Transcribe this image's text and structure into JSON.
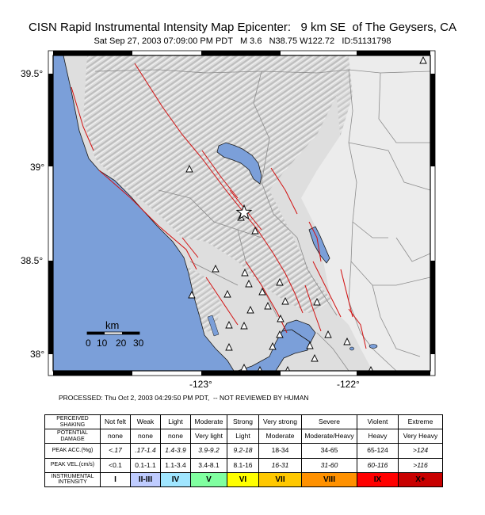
{
  "header": {
    "title": "CISN Rapid Instrumental Intensity Map Epicenter:   9 km SE  of The Geysers, CA",
    "subtitle": "Sat Sep 27, 2003 07:09:00 PM PDT   M 3.6   N38.75 W122.72   ID:51131798"
  },
  "map": {
    "lat_ticks": [
      {
        "label": "39.5°",
        "value": 39.5
      },
      {
        "label": "39°",
        "value": 39.0
      },
      {
        "label": "38.5°",
        "value": 38.5
      },
      {
        "label": "38°",
        "value": 38.0
      }
    ],
    "lon_ticks": [
      {
        "label": "-123°",
        "value": -123.0
      },
      {
        "label": "-122°",
        "value": -122.0
      }
    ],
    "epicenter": {
      "lat": 38.75,
      "lon": -122.72,
      "symbol": "star-icon"
    },
    "scale_bar": {
      "unit": "km",
      "labels": [
        "0",
        "10",
        "20",
        "30"
      ]
    },
    "colors": {
      "water": "#7b9fd9",
      "land": "#dedede",
      "fault": "#d21010",
      "boundary": "#8c8c8c"
    }
  },
  "processed_note": "PROCESSED: Thu Oct 2, 2003 04:29:50 PM PDT,  -- NOT REVIEWED BY HUMAN",
  "legend": {
    "row_labels": {
      "shaking": "PERCEIVED SHAKING",
      "damage": "POTENTIAL DAMAGE",
      "acc": "PEAK ACC.(%g)",
      "vel": "PEAK VEL.(cm/s)",
      "intensity": "INSTRUMENTAL INTENSITY"
    },
    "columns": [
      {
        "shaking": "Not felt",
        "damage": "none",
        "acc": "<.17",
        "vel": "<0.1",
        "intensity": "I",
        "color": "#ffffff"
      },
      {
        "shaking": "Weak",
        "damage": "none",
        "acc": ".17-1.4",
        "vel": "0.1-1.1",
        "intensity": "II-III",
        "color": "#bfccff"
      },
      {
        "shaking": "Light",
        "damage": "none",
        "acc": "1.4-3.9",
        "vel": "1.1-3.4",
        "intensity": "IV",
        "color": "#a0e6ff"
      },
      {
        "shaking": "Moderate",
        "damage": "Very light",
        "acc": "3.9-9.2",
        "vel": "3.4-8.1",
        "intensity": "V",
        "color": "#80ffa0"
      },
      {
        "shaking": "Strong",
        "damage": "Light",
        "acc": "9.2-18",
        "vel": "8.1-16",
        "intensity": "VI",
        "color": "#ffff00"
      },
      {
        "shaking": "Very strong",
        "damage": "Moderate",
        "acc": "18-34",
        "vel": "16-31",
        "intensity": "VII",
        "color": "#ffc800"
      },
      {
        "shaking": "Severe",
        "damage": "Moderate/Heavy",
        "acc": "34-65",
        "vel": "31-60",
        "intensity": "VIII",
        "color": "#ff9100"
      },
      {
        "shaking": "Violent",
        "damage": "Heavy",
        "acc": "65-124",
        "vel": "60-116",
        "intensity": "IX",
        "color": "#ff0000"
      },
      {
        "shaking": "Extreme",
        "damage": "Very Heavy",
        "acc": ">124",
        "vel": ">116",
        "intensity": "X+",
        "color": "#c80000"
      }
    ]
  }
}
